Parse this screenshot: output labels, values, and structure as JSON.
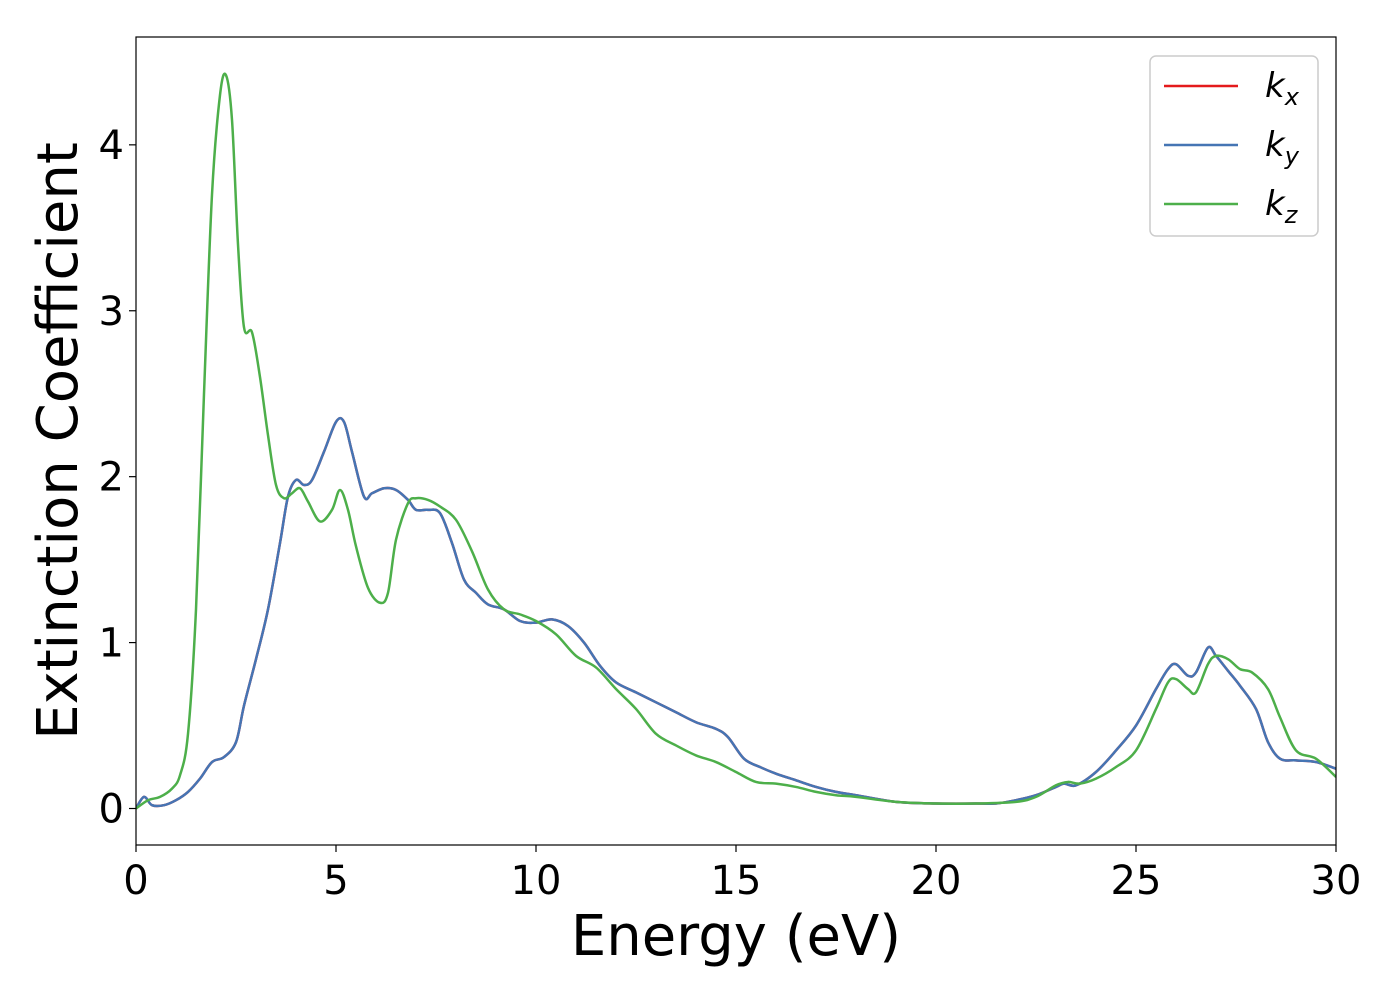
{
  "chart_data": {
    "type": "line",
    "title": "",
    "xlabel": "Energy (eV)",
    "ylabel": "Extinction Coefficient",
    "xlim": [
      0,
      30
    ],
    "ylim": [
      -0.22,
      4.65
    ],
    "xticks": [
      0,
      5,
      10,
      15,
      20,
      25,
      30
    ],
    "xtick_labels": [
      "0",
      "5",
      "10",
      "15",
      "20",
      "25",
      "30"
    ],
    "yticks": [
      0,
      1,
      2,
      3,
      4
    ],
    "ytick_labels": [
      "0",
      "1",
      "2",
      "3",
      "4"
    ],
    "grid": false,
    "legend_position": "top-right",
    "series": [
      {
        "name": "k_x",
        "symbol": "k",
        "subscript": "x",
        "color": "#e41a1c",
        "x": [
          0,
          0.2,
          0.4,
          0.7,
          1.0,
          1.3,
          1.6,
          1.9,
          2.2,
          2.5,
          2.7,
          3.0,
          3.3,
          3.6,
          3.8,
          4.0,
          4.2,
          4.4,
          4.7,
          5.0,
          5.2,
          5.4,
          5.7,
          5.9,
          6.2,
          6.5,
          6.8,
          7.0,
          7.3,
          7.6,
          7.9,
          8.2,
          8.5,
          8.8,
          9.2,
          9.6,
          10.0,
          10.4,
          10.8,
          11.2,
          11.6,
          12.0,
          12.5,
          13.0,
          13.5,
          14.0,
          14.5,
          14.8,
          15.2,
          15.6,
          16.0,
          16.5,
          17.0,
          17.5,
          18.0,
          19.0,
          20.0,
          21.0,
          21.5,
          22.0,
          22.5,
          23.0,
          23.2,
          23.5,
          24.0,
          24.5,
          25.0,
          25.5,
          25.8,
          26.0,
          26.3,
          26.5,
          26.8,
          27.0,
          27.3,
          27.6,
          28.0,
          28.3,
          28.6,
          29.0,
          29.5,
          30.0
        ],
        "y": [
          0.0,
          0.07,
          0.02,
          0.02,
          0.05,
          0.1,
          0.18,
          0.28,
          0.31,
          0.4,
          0.62,
          0.9,
          1.2,
          1.6,
          1.88,
          1.98,
          1.95,
          1.98,
          2.15,
          2.33,
          2.33,
          2.15,
          1.88,
          1.9,
          1.93,
          1.92,
          1.86,
          1.8,
          1.8,
          1.78,
          1.6,
          1.38,
          1.3,
          1.23,
          1.2,
          1.13,
          1.12,
          1.14,
          1.1,
          1.0,
          0.86,
          0.76,
          0.7,
          0.64,
          0.58,
          0.52,
          0.48,
          0.43,
          0.3,
          0.25,
          0.21,
          0.17,
          0.13,
          0.1,
          0.08,
          0.04,
          0.03,
          0.03,
          0.03,
          0.05,
          0.08,
          0.13,
          0.15,
          0.14,
          0.22,
          0.35,
          0.5,
          0.72,
          0.84,
          0.87,
          0.8,
          0.82,
          0.97,
          0.92,
          0.83,
          0.74,
          0.6,
          0.4,
          0.3,
          0.29,
          0.28,
          0.24
        ]
      },
      {
        "name": "k_y",
        "symbol": "k",
        "subscript": "y",
        "color": "#4575b4",
        "x": [
          0,
          0.2,
          0.4,
          0.7,
          1.0,
          1.3,
          1.6,
          1.9,
          2.2,
          2.5,
          2.7,
          3.0,
          3.3,
          3.6,
          3.8,
          4.0,
          4.2,
          4.4,
          4.7,
          5.0,
          5.2,
          5.4,
          5.7,
          5.9,
          6.2,
          6.5,
          6.8,
          7.0,
          7.3,
          7.6,
          7.9,
          8.2,
          8.5,
          8.8,
          9.2,
          9.6,
          10.0,
          10.4,
          10.8,
          11.2,
          11.6,
          12.0,
          12.5,
          13.0,
          13.5,
          14.0,
          14.5,
          14.8,
          15.2,
          15.6,
          16.0,
          16.5,
          17.0,
          17.5,
          18.0,
          19.0,
          20.0,
          21.0,
          21.5,
          22.0,
          22.5,
          23.0,
          23.2,
          23.5,
          24.0,
          24.5,
          25.0,
          25.5,
          25.8,
          26.0,
          26.3,
          26.5,
          26.8,
          27.0,
          27.3,
          27.6,
          28.0,
          28.3,
          28.6,
          29.0,
          29.5,
          30.0
        ],
        "y": [
          0.0,
          0.07,
          0.02,
          0.02,
          0.05,
          0.1,
          0.18,
          0.28,
          0.31,
          0.4,
          0.62,
          0.9,
          1.2,
          1.6,
          1.88,
          1.98,
          1.95,
          1.98,
          2.15,
          2.33,
          2.33,
          2.15,
          1.88,
          1.9,
          1.93,
          1.92,
          1.86,
          1.8,
          1.8,
          1.78,
          1.6,
          1.38,
          1.3,
          1.23,
          1.2,
          1.13,
          1.12,
          1.14,
          1.1,
          1.0,
          0.86,
          0.76,
          0.7,
          0.64,
          0.58,
          0.52,
          0.48,
          0.43,
          0.3,
          0.25,
          0.21,
          0.17,
          0.13,
          0.1,
          0.08,
          0.04,
          0.03,
          0.03,
          0.03,
          0.05,
          0.08,
          0.13,
          0.15,
          0.14,
          0.22,
          0.35,
          0.5,
          0.72,
          0.84,
          0.87,
          0.8,
          0.82,
          0.97,
          0.92,
          0.83,
          0.74,
          0.6,
          0.4,
          0.3,
          0.29,
          0.28,
          0.24
        ]
      },
      {
        "name": "k_z",
        "symbol": "k",
        "subscript": "z",
        "color": "#4daf4a",
        "x": [
          0,
          0.3,
          0.6,
          0.9,
          1.1,
          1.3,
          1.5,
          1.7,
          1.9,
          2.1,
          2.25,
          2.4,
          2.55,
          2.7,
          2.9,
          3.1,
          3.3,
          3.5,
          3.7,
          3.9,
          4.1,
          4.3,
          4.6,
          4.9,
          5.1,
          5.3,
          5.5,
          5.8,
          6.1,
          6.3,
          6.5,
          6.8,
          7.0,
          7.3,
          7.6,
          8.0,
          8.4,
          8.8,
          9.2,
          9.6,
          10.0,
          10.5,
          11.0,
          11.5,
          12.0,
          12.5,
          13.0,
          13.5,
          14.0,
          14.5,
          15.0,
          15.5,
          16.0,
          16.5,
          17.0,
          17.5,
          18.0,
          19.0,
          20.0,
          21.0,
          22.0,
          22.5,
          23.0,
          23.3,
          23.6,
          24.0,
          24.5,
          25.0,
          25.5,
          25.8,
          26.0,
          26.3,
          26.5,
          26.8,
          27.0,
          27.3,
          27.6,
          27.9,
          28.3,
          28.6,
          29.0,
          29.5,
          30.0
        ],
        "y": [
          0.0,
          0.05,
          0.07,
          0.12,
          0.2,
          0.45,
          1.2,
          2.5,
          3.7,
          4.3,
          4.42,
          4.15,
          3.4,
          2.9,
          2.87,
          2.6,
          2.25,
          1.95,
          1.87,
          1.9,
          1.93,
          1.85,
          1.73,
          1.8,
          1.92,
          1.8,
          1.58,
          1.33,
          1.24,
          1.3,
          1.62,
          1.84,
          1.87,
          1.86,
          1.82,
          1.74,
          1.55,
          1.32,
          1.2,
          1.17,
          1.13,
          1.05,
          0.92,
          0.85,
          0.72,
          0.6,
          0.45,
          0.38,
          0.32,
          0.28,
          0.22,
          0.16,
          0.15,
          0.13,
          0.1,
          0.08,
          0.07,
          0.04,
          0.03,
          0.03,
          0.04,
          0.07,
          0.14,
          0.16,
          0.15,
          0.18,
          0.25,
          0.35,
          0.6,
          0.76,
          0.78,
          0.72,
          0.7,
          0.87,
          0.92,
          0.9,
          0.84,
          0.82,
          0.72,
          0.55,
          0.35,
          0.3,
          0.19
        ]
      }
    ]
  }
}
